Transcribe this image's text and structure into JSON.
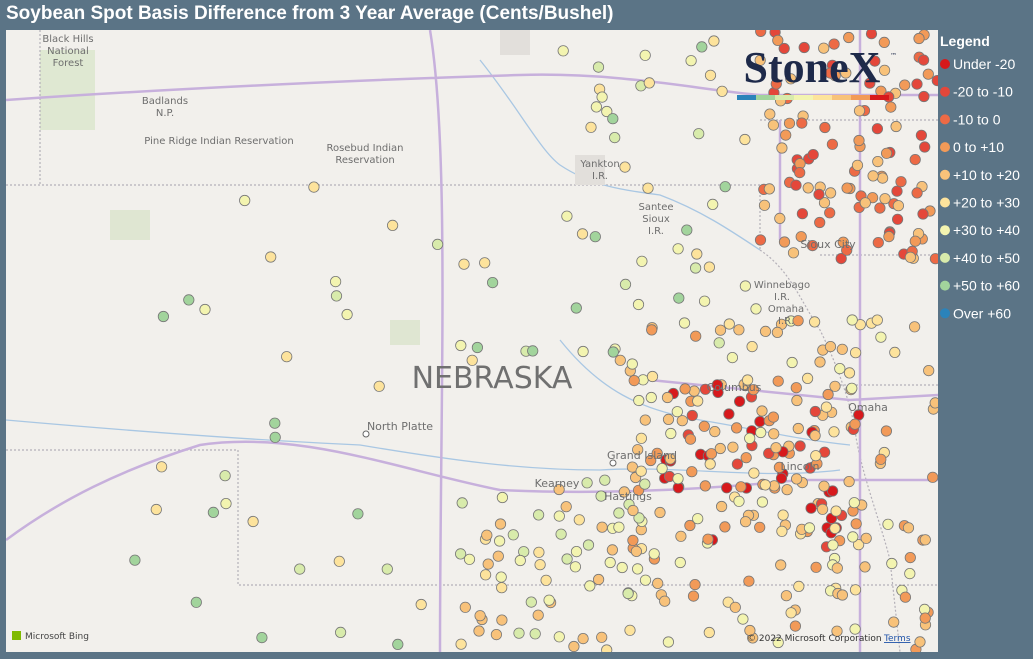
{
  "header": {
    "title": "Soybean Spot Basis Difference from 3 Year Average (Cents/Bushel)"
  },
  "legend": {
    "title": "Legend",
    "items": [
      {
        "label": "Under -20",
        "color": "#d7191c"
      },
      {
        "label": "-20 to -10",
        "color": "#e4473a"
      },
      {
        "label": "-10 to 0",
        "color": "#ed6a45"
      },
      {
        "label": "0 to +10",
        "color": "#f29a58"
      },
      {
        "label": "+10 to +20",
        "color": "#f8c27a"
      },
      {
        "label": "+20 to +30",
        "color": "#fde39c"
      },
      {
        "label": "+30 to +40",
        "color": "#f3f4b0"
      },
      {
        "label": "+40 to +50",
        "color": "#d8ebab"
      },
      {
        "label": "+50 to +60",
        "color": "#a2d49c"
      },
      {
        "label": "Over +60",
        "color": "#2b83ba"
      }
    ]
  },
  "logo": {
    "text": "StoneX",
    "mark": "™"
  },
  "map": {
    "labels": {
      "black_hills": [
        "Black Hills",
        "National",
        "Forest"
      ],
      "badlands": [
        "Badlands",
        "N.P."
      ],
      "pine_ridge": [
        "Pine Ridge Indian Reservation"
      ],
      "rosebud": [
        "Rosebud Indian",
        "Reservation"
      ],
      "yankton": [
        "Yankton",
        "I.R."
      ],
      "santee": [
        "Santee",
        "Sioux",
        "I.R."
      ],
      "sioux_city": [
        "Sioux City"
      ],
      "winnebago": [
        "Winnebago",
        "I.R."
      ],
      "omaha_ir": [
        "Omaha",
        "I.R."
      ],
      "state": [
        "NEBRASKA"
      ],
      "columbus": [
        "Columbus"
      ],
      "omaha": [
        "Omaha"
      ],
      "north_platte": [
        "North Platte"
      ],
      "grand_island": [
        "Grand Island"
      ],
      "kearney": [
        "Kearney"
      ],
      "hastings": [
        "Hastings"
      ],
      "lincoln": [
        "Lincoln"
      ]
    }
  },
  "footer": {
    "provider": "Microsoft Bing",
    "copyright": "© 2022 Microsoft Corporation",
    "terms": "Terms"
  }
}
